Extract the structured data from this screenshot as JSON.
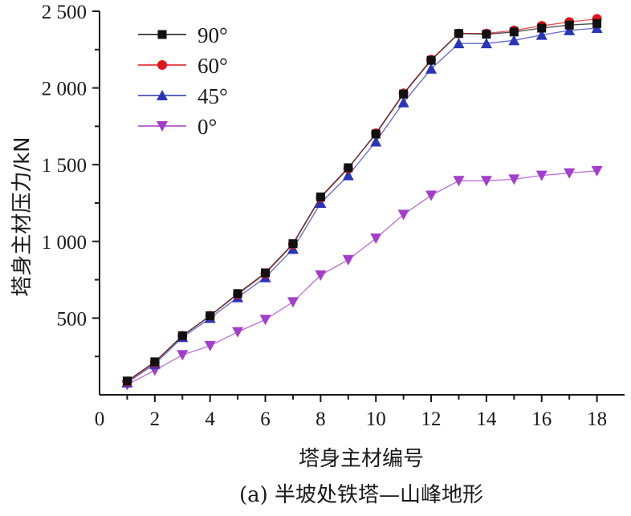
{
  "chart_data": {
    "type": "line",
    "title": "",
    "xlabel": "塔身主材编号",
    "ylabel": "塔身主材压力/kN",
    "caption": "(a) 半坡处铁塔—山峰地形",
    "xlim": [
      0,
      19
    ],
    "ylim": [
      0,
      2500
    ],
    "x_ticks": [
      0,
      2,
      4,
      6,
      8,
      10,
      12,
      14,
      16,
      18
    ],
    "x_tick_labels": [
      "0",
      "2",
      "4",
      "6",
      "8",
      "10",
      "12",
      "14",
      "16",
      "18"
    ],
    "y_ticks": [
      500,
      1000,
      1500,
      2000,
      2500
    ],
    "y_tick_labels": [
      "500",
      "1 000",
      "1 500",
      "2 000",
      "2 500"
    ],
    "grid": false,
    "legend_position": "top-left",
    "x": [
      1,
      2,
      3,
      4,
      5,
      6,
      7,
      8,
      9,
      10,
      11,
      12,
      13,
      14,
      15,
      16,
      17,
      18
    ],
    "series": [
      {
        "name": "90°",
        "marker": "square",
        "color": "#111111",
        "values": [
          90,
          215,
          385,
          515,
          660,
          795,
          985,
          1290,
          1480,
          1700,
          1960,
          2180,
          2355,
          2350,
          2365,
          2390,
          2410,
          2420
        ]
      },
      {
        "name": "60°",
        "marker": "circle",
        "color": "#e0141b",
        "values": [
          85,
          210,
          385,
          515,
          655,
          790,
          980,
          1285,
          1475,
          1705,
          1965,
          2185,
          2355,
          2355,
          2375,
          2405,
          2430,
          2450
        ]
      },
      {
        "name": "45°",
        "marker": "triangle-up",
        "color": "#2a35b8",
        "values": [
          80,
          200,
          375,
          500,
          635,
          765,
          950,
          1250,
          1430,
          1650,
          1905,
          2125,
          2290,
          2290,
          2310,
          2345,
          2375,
          2390
        ]
      },
      {
        "name": "0°",
        "marker": "triangle-down",
        "color": "#a23ecb",
        "values": [
          65,
          160,
          260,
          320,
          410,
          490,
          605,
          780,
          880,
          1020,
          1175,
          1300,
          1395,
          1395,
          1405,
          1430,
          1445,
          1460
        ]
      }
    ]
  }
}
